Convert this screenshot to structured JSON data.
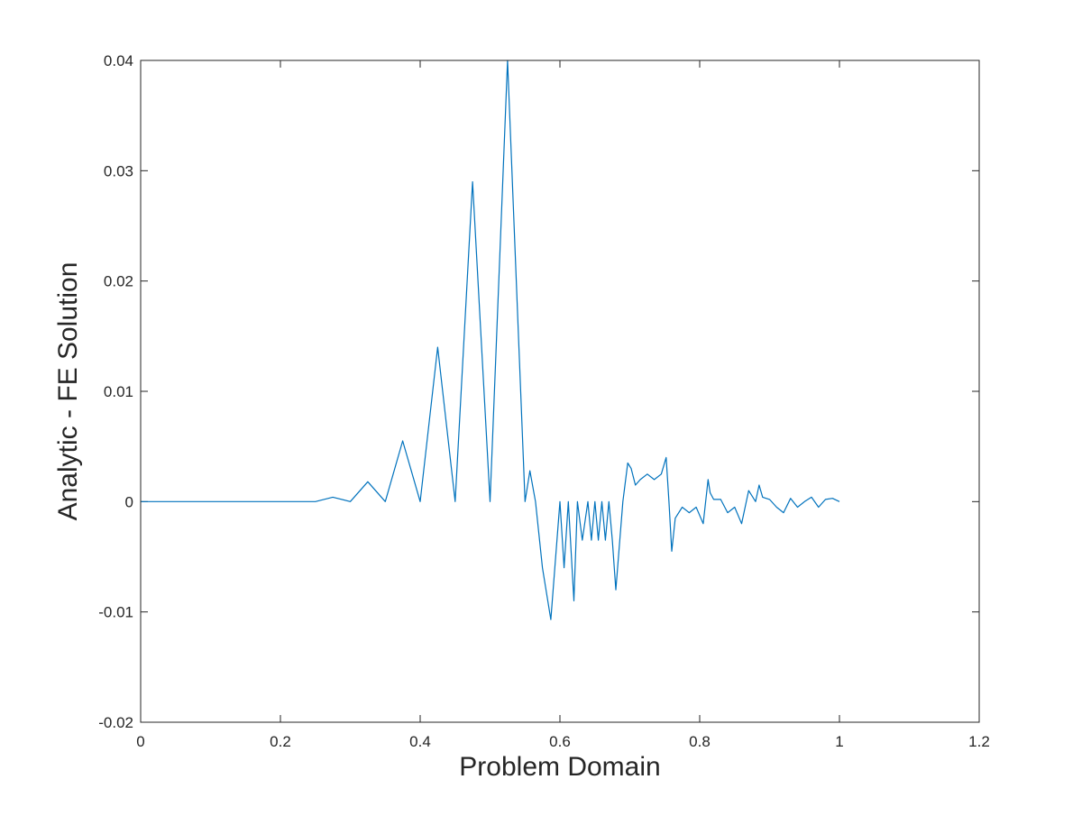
{
  "chart_data": {
    "type": "line",
    "title": "",
    "xlabel": "Problem Domain",
    "ylabel": "Analytic - FE Solution",
    "xlim": [
      0,
      1.2
    ],
    "ylim": [
      -0.02,
      0.04
    ],
    "xticks": [
      0,
      0.2,
      0.4,
      0.6,
      0.8,
      1,
      1.2
    ],
    "xtick_labels": [
      "0",
      "0.2",
      "0.4",
      "0.6",
      "0.8",
      "1",
      "1.2"
    ],
    "yticks": [
      -0.02,
      -0.01,
      0,
      0.01,
      0.02,
      0.03,
      0.04
    ],
    "ytick_labels": [
      "-0.02",
      "-0.01",
      "0",
      "0.01",
      "0.02",
      "0.03",
      "0.04"
    ],
    "grid": false,
    "box": true,
    "series": [
      {
        "color": "#0072BD",
        "x": [
          0,
          0.2,
          0.25,
          0.275,
          0.3,
          0.325,
          0.35,
          0.375,
          0.4,
          0.425,
          0.45,
          0.475,
          0.5,
          0.525,
          0.55,
          0.557,
          0.565,
          0.575,
          0.587,
          0.6,
          0.606,
          0.612,
          0.62,
          0.625,
          0.632,
          0.64,
          0.645,
          0.65,
          0.655,
          0.66,
          0.665,
          0.67,
          0.675,
          0.68,
          0.69,
          0.697,
          0.702,
          0.708,
          0.715,
          0.725,
          0.735,
          0.745,
          0.752,
          0.756,
          0.76,
          0.765,
          0.775,
          0.785,
          0.795,
          0.805,
          0.812,
          0.815,
          0.82,
          0.83,
          0.84,
          0.85,
          0.86,
          0.87,
          0.88,
          0.885,
          0.89,
          0.9,
          0.91,
          0.92,
          0.93,
          0.94,
          0.95,
          0.96,
          0.97,
          0.98,
          0.99,
          1.0
        ],
        "y": [
          0,
          0,
          0,
          0.0004,
          0,
          0.0018,
          0,
          0.0055,
          0,
          0.014,
          0,
          0.029,
          0,
          0.04,
          0,
          0.0028,
          0,
          -0.006,
          -0.0107,
          0,
          -0.006,
          0,
          -0.009,
          0,
          -0.0035,
          0,
          -0.0035,
          0,
          -0.0035,
          0,
          -0.0035,
          0,
          -0.0035,
          -0.008,
          0,
          0.0035,
          0.003,
          0.0015,
          0.002,
          0.0025,
          0.002,
          0.0025,
          0.004,
          0,
          -0.0045,
          -0.0015,
          -0.0005,
          -0.001,
          -0.0005,
          -0.002,
          0.002,
          0.0008,
          0.0002,
          0.0002,
          -0.001,
          -0.0005,
          -0.002,
          0.001,
          0,
          0.0015,
          0.0004,
          0.0002,
          -0.0005,
          -0.001,
          0.0003,
          -0.0005,
          0,
          0.0004,
          -0.0005,
          0.0002,
          0.0003,
          0
        ]
      }
    ]
  }
}
